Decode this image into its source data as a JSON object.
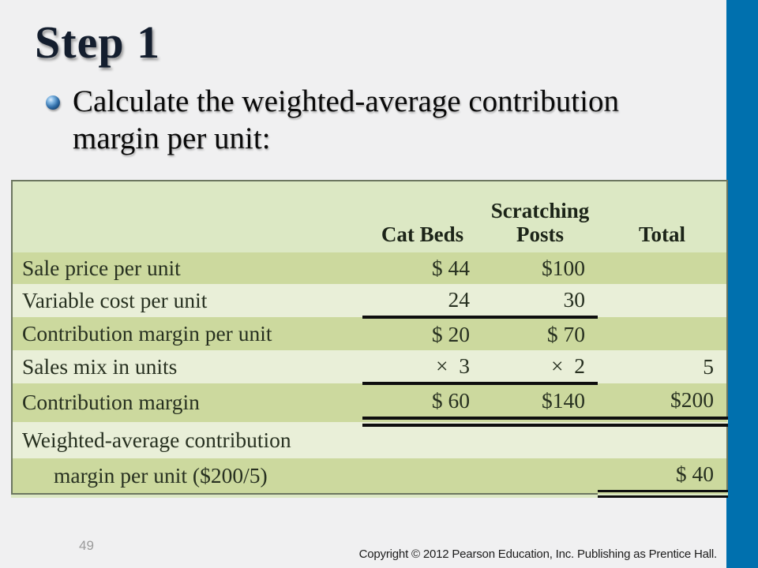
{
  "slide": {
    "title": "Step 1",
    "bullet_text": "Calculate the weighted-average contribution margin per unit:"
  },
  "table": {
    "headers": [
      "",
      "Cat Beds",
      "Scratching Posts",
      "Total"
    ],
    "rows": [
      {
        "label": "Sale price per unit",
        "cat_beds": "$ 44",
        "scratching_posts": "$100",
        "total": ""
      },
      {
        "label": "Variable cost per unit",
        "cat_beds": "24",
        "scratching_posts": "30",
        "total": ""
      },
      {
        "label": "Contribution margin per unit",
        "cat_beds": "$ 20",
        "scratching_posts": "$ 70",
        "total": ""
      },
      {
        "label": "Sales mix in units",
        "cat_beds": "×  3",
        "scratching_posts": "×  2",
        "total": "5"
      },
      {
        "label": "Contribution margin",
        "cat_beds": "$ 60",
        "scratching_posts": "$140",
        "total": "$200"
      },
      {
        "label": "Weighted-average contribution",
        "cat_beds": "",
        "scratching_posts": "",
        "total": ""
      },
      {
        "label": "margin per unit ($200/5)",
        "cat_beds": "",
        "scratching_posts": "",
        "total": "$ 40"
      }
    ]
  },
  "footer": {
    "page_number": "49",
    "copyright": "Copyright © 2012 Pearson Education, Inc. Publishing as Prentice Hall."
  },
  "colors": {
    "slide_bg": "#f0f0f1",
    "accent_bar_blue": "#0070ae",
    "table_header_bg": "#dce8c4",
    "row_band_dark": "#ccd99e",
    "row_band_light": "#e9efd8",
    "grid_line": "#49543f",
    "accounting_rule": "#0e0e0e",
    "title_color": "#141e2e",
    "footer_page_gray": "#9b9b9b"
  }
}
